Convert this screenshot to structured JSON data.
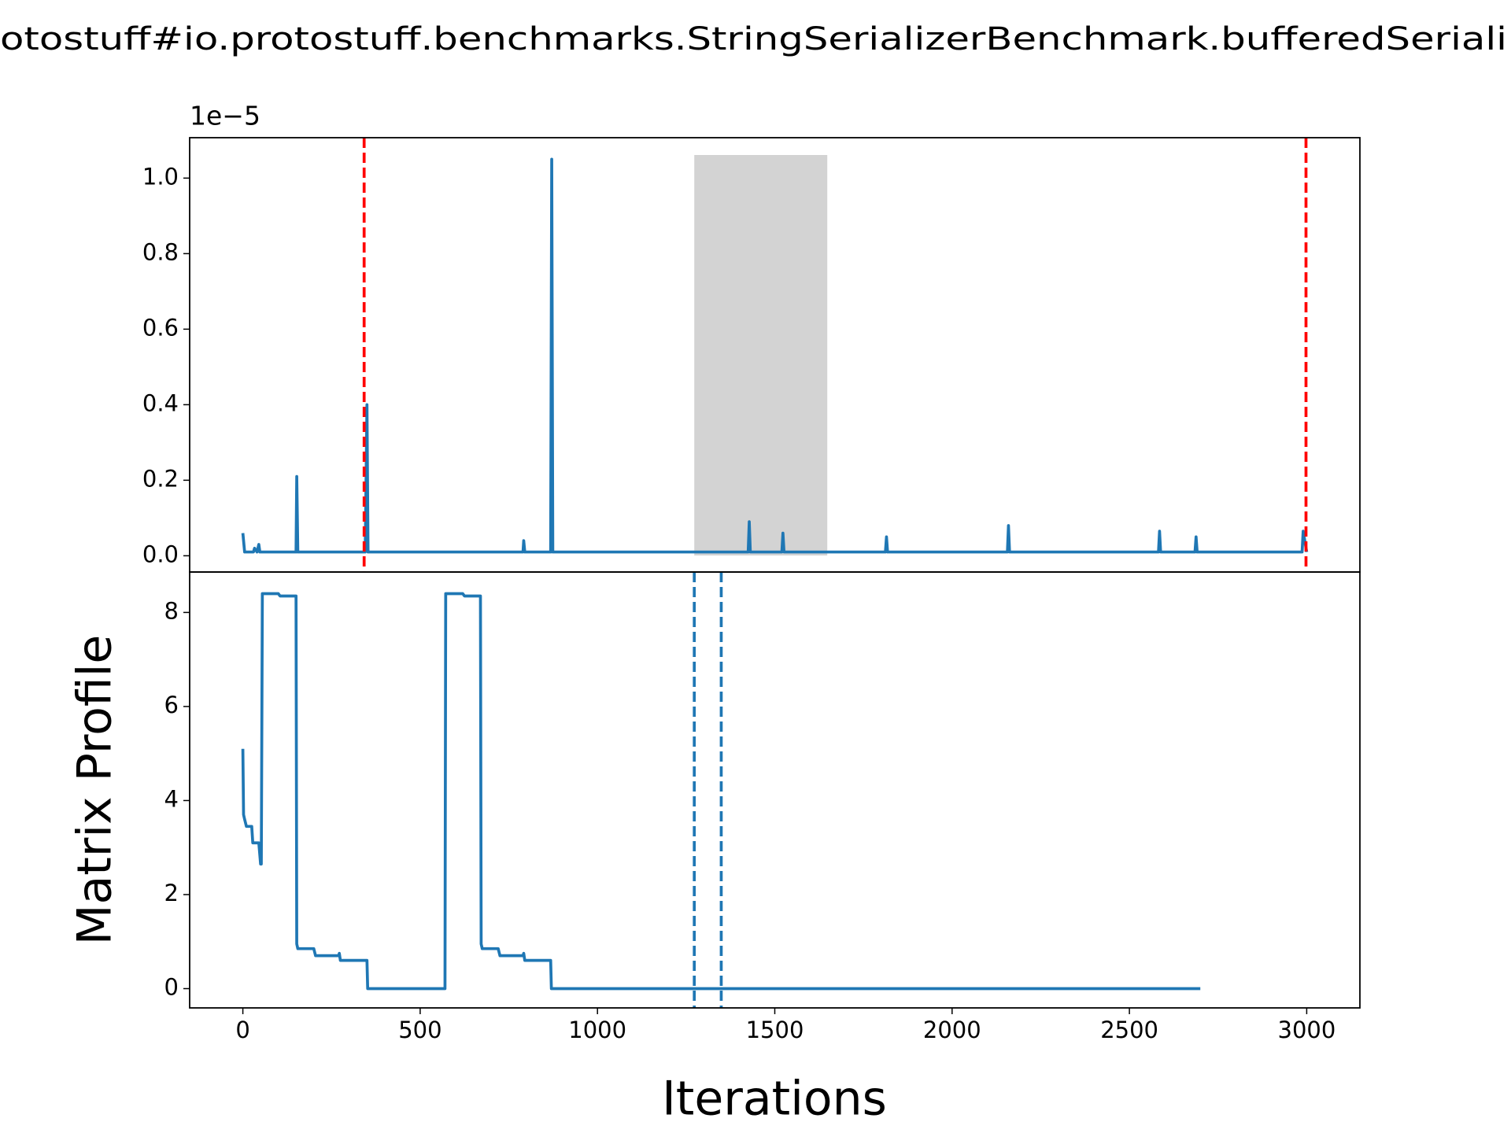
{
  "chart_data": [
    {
      "type": "line",
      "title": "otostuff#io.protostuff.benchmarks.StringSerializerBenchmark.bufferedSeriali",
      "offset_label": "1e−5",
      "x": [
        0,
        5,
        30,
        33,
        40,
        45,
        48,
        100,
        150,
        152,
        155,
        345,
        350,
        353,
        790,
        792,
        795,
        868,
        871,
        874,
        1425,
        1428,
        1431,
        1520,
        1523,
        1526,
        1812,
        1815,
        1818,
        2156,
        2159,
        2162,
        2582,
        2585,
        2588,
        2685,
        2688,
        2691,
        2987,
        2990,
        3000
      ],
      "values": [
        0.06,
        0.01,
        0.01,
        0.02,
        0.01,
        0.03,
        0.01,
        0.01,
        0.01,
        0.21,
        0.01,
        0.01,
        0.4,
        0.01,
        0.01,
        0.04,
        0.01,
        0.01,
        1.05,
        0.01,
        0.01,
        0.09,
        0.01,
        0.01,
        0.06,
        0.01,
        0.01,
        0.05,
        0.01,
        0.01,
        0.08,
        0.01,
        0.01,
        0.065,
        0.01,
        0.01,
        0.05,
        0.01,
        0.01,
        0.065,
        0.01
      ],
      "color": "#1f77b4",
      "xlim": [
        -150,
        3150
      ],
      "ylim": [
        -0.043,
        1.107
      ],
      "yticks": [
        {
          "value": 0,
          "label": "0.0"
        },
        0.2,
        0.4,
        0.6,
        0.8,
        {
          "value": 1,
          "label": "1.0"
        }
      ],
      "vlines": [
        342,
        2998
      ],
      "vline_color": "#ff0000",
      "span": [
        1273,
        1648
      ],
      "span_color": "#d3d3d3"
    },
    {
      "type": "line",
      "x": [
        0,
        2,
        5,
        10,
        25,
        28,
        45,
        50,
        52,
        55,
        100,
        105,
        150,
        152,
        155,
        200,
        205,
        270,
        272,
        275,
        350,
        352,
        570,
        572,
        620,
        625,
        670,
        672,
        675,
        720,
        725,
        790,
        792,
        795,
        868,
        870,
        2700
      ],
      "values": [
        5.1,
        3.7,
        3.6,
        3.45,
        3.45,
        3.1,
        3.1,
        2.65,
        2.65,
        8.4,
        8.4,
        8.35,
        8.35,
        0.95,
        0.85,
        0.85,
        0.7,
        0.7,
        0.75,
        0.6,
        0.6,
        0,
        0,
        8.4,
        8.4,
        8.35,
        8.35,
        0.95,
        0.85,
        0.85,
        0.7,
        0.7,
        0.75,
        0.6,
        0.6,
        0,
        0
      ],
      "color": "#1f77b4",
      "xlim": [
        -150,
        3150
      ],
      "ylim": [
        -0.41,
        8.86
      ],
      "xticks": [
        0,
        500,
        1000,
        1500,
        2000,
        2500,
        3000
      ],
      "yticks": [
        0,
        2,
        4,
        6,
        8
      ],
      "xlabel": "Iterations",
      "ylabel": "Matrix Profile",
      "vlines": [
        1273,
        1349
      ],
      "vline_color": "#1f77b4"
    }
  ]
}
